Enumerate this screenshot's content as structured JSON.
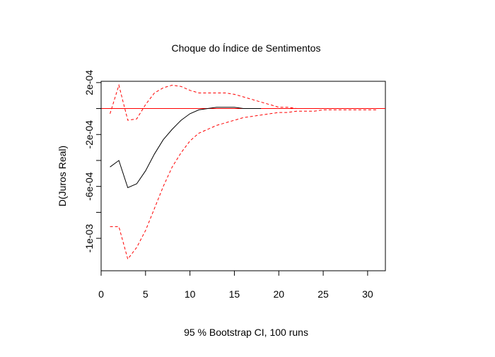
{
  "chart_data": {
    "type": "line",
    "title": "Choque do Índice de Sentimentos",
    "xlabel": "95 % Bootstrap CI,  100 runs",
    "ylabel": "D(Juros Real)",
    "xlim": [
      0,
      32
    ],
    "ylim": [
      -0.00125,
      0.00021
    ],
    "x_ticks": [
      0,
      5,
      10,
      15,
      20,
      25,
      30
    ],
    "x_tick_labels": [
      "0",
      "5",
      "10",
      "15",
      "20",
      "25",
      "30"
    ],
    "y_ticks": [
      0.0002,
      -0.0002,
      -0.0006,
      -0.001
    ],
    "y_tick_labels": [
      "2e-04",
      "-2e-04",
      "-6e-04",
      "-1e-03"
    ],
    "y_minor_ticks": [
      0,
      -0.0004,
      -0.0008
    ],
    "zero_line": {
      "y": 0,
      "color": "#ff0000"
    },
    "grid": false,
    "series": [
      {
        "role": "irf",
        "color": "#000000",
        "dash": "solid",
        "x": [
          1,
          2,
          3,
          4,
          5,
          6,
          7,
          8,
          9,
          10,
          11,
          12,
          13,
          14,
          15,
          16,
          17,
          18
        ],
        "values": [
          -0.00045,
          -0.0004,
          -0.00061,
          -0.00058,
          -0.00048,
          -0.00035,
          -0.00024,
          -0.00016,
          -9e-05,
          -4e-05,
          -1e-05,
          0.0,
          1e-05,
          1e-05,
          1e-05,
          0.0,
          0.0,
          0.0
        ]
      },
      {
        "role": "upper",
        "color": "#ff0000",
        "dash": "dashed",
        "x": [
          1,
          2,
          3,
          4,
          5,
          6,
          7,
          8,
          9,
          10,
          11,
          12,
          13,
          14,
          15,
          16,
          17,
          18,
          19,
          20,
          21,
          22,
          23,
          24,
          25,
          26,
          27,
          28,
          29,
          30,
          31
        ],
        "values": [
          -4e-05,
          0.00018,
          -9e-05,
          -8e-05,
          3e-05,
          0.00012,
          0.00016,
          0.00018,
          0.00017,
          0.00014,
          0.00012,
          0.00012,
          0.00012,
          0.00012,
          0.00011,
          9e-05,
          7e-05,
          5e-05,
          3e-05,
          1e-05,
          1e-05,
          0.0,
          0.0,
          0.0,
          0.0,
          0.0,
          0.0,
          0.0,
          0.0,
          0.0,
          0.0
        ]
      },
      {
        "role": "lower",
        "color": "#ff0000",
        "dash": "dashed",
        "x": [
          1,
          2,
          3,
          4,
          5,
          6,
          7,
          8,
          9,
          10,
          11,
          12,
          13,
          14,
          15,
          16,
          17,
          18,
          19,
          20,
          21,
          22,
          23,
          24,
          25,
          26,
          27,
          28,
          29,
          30,
          31
        ],
        "values": [
          -0.00091,
          -0.00091,
          -0.00116,
          -0.00107,
          -0.00094,
          -0.00077,
          -0.0006,
          -0.00045,
          -0.00034,
          -0.00025,
          -0.00019,
          -0.00016,
          -0.00013,
          -0.00011,
          -9e-05,
          -7e-05,
          -6e-05,
          -5e-05,
          -4e-05,
          -3e-05,
          -3e-05,
          -2e-05,
          -2e-05,
          -2e-05,
          -1e-05,
          -1e-05,
          -1e-05,
          -1e-05,
          -1e-05,
          -1e-05,
          -1e-05
        ]
      }
    ]
  }
}
